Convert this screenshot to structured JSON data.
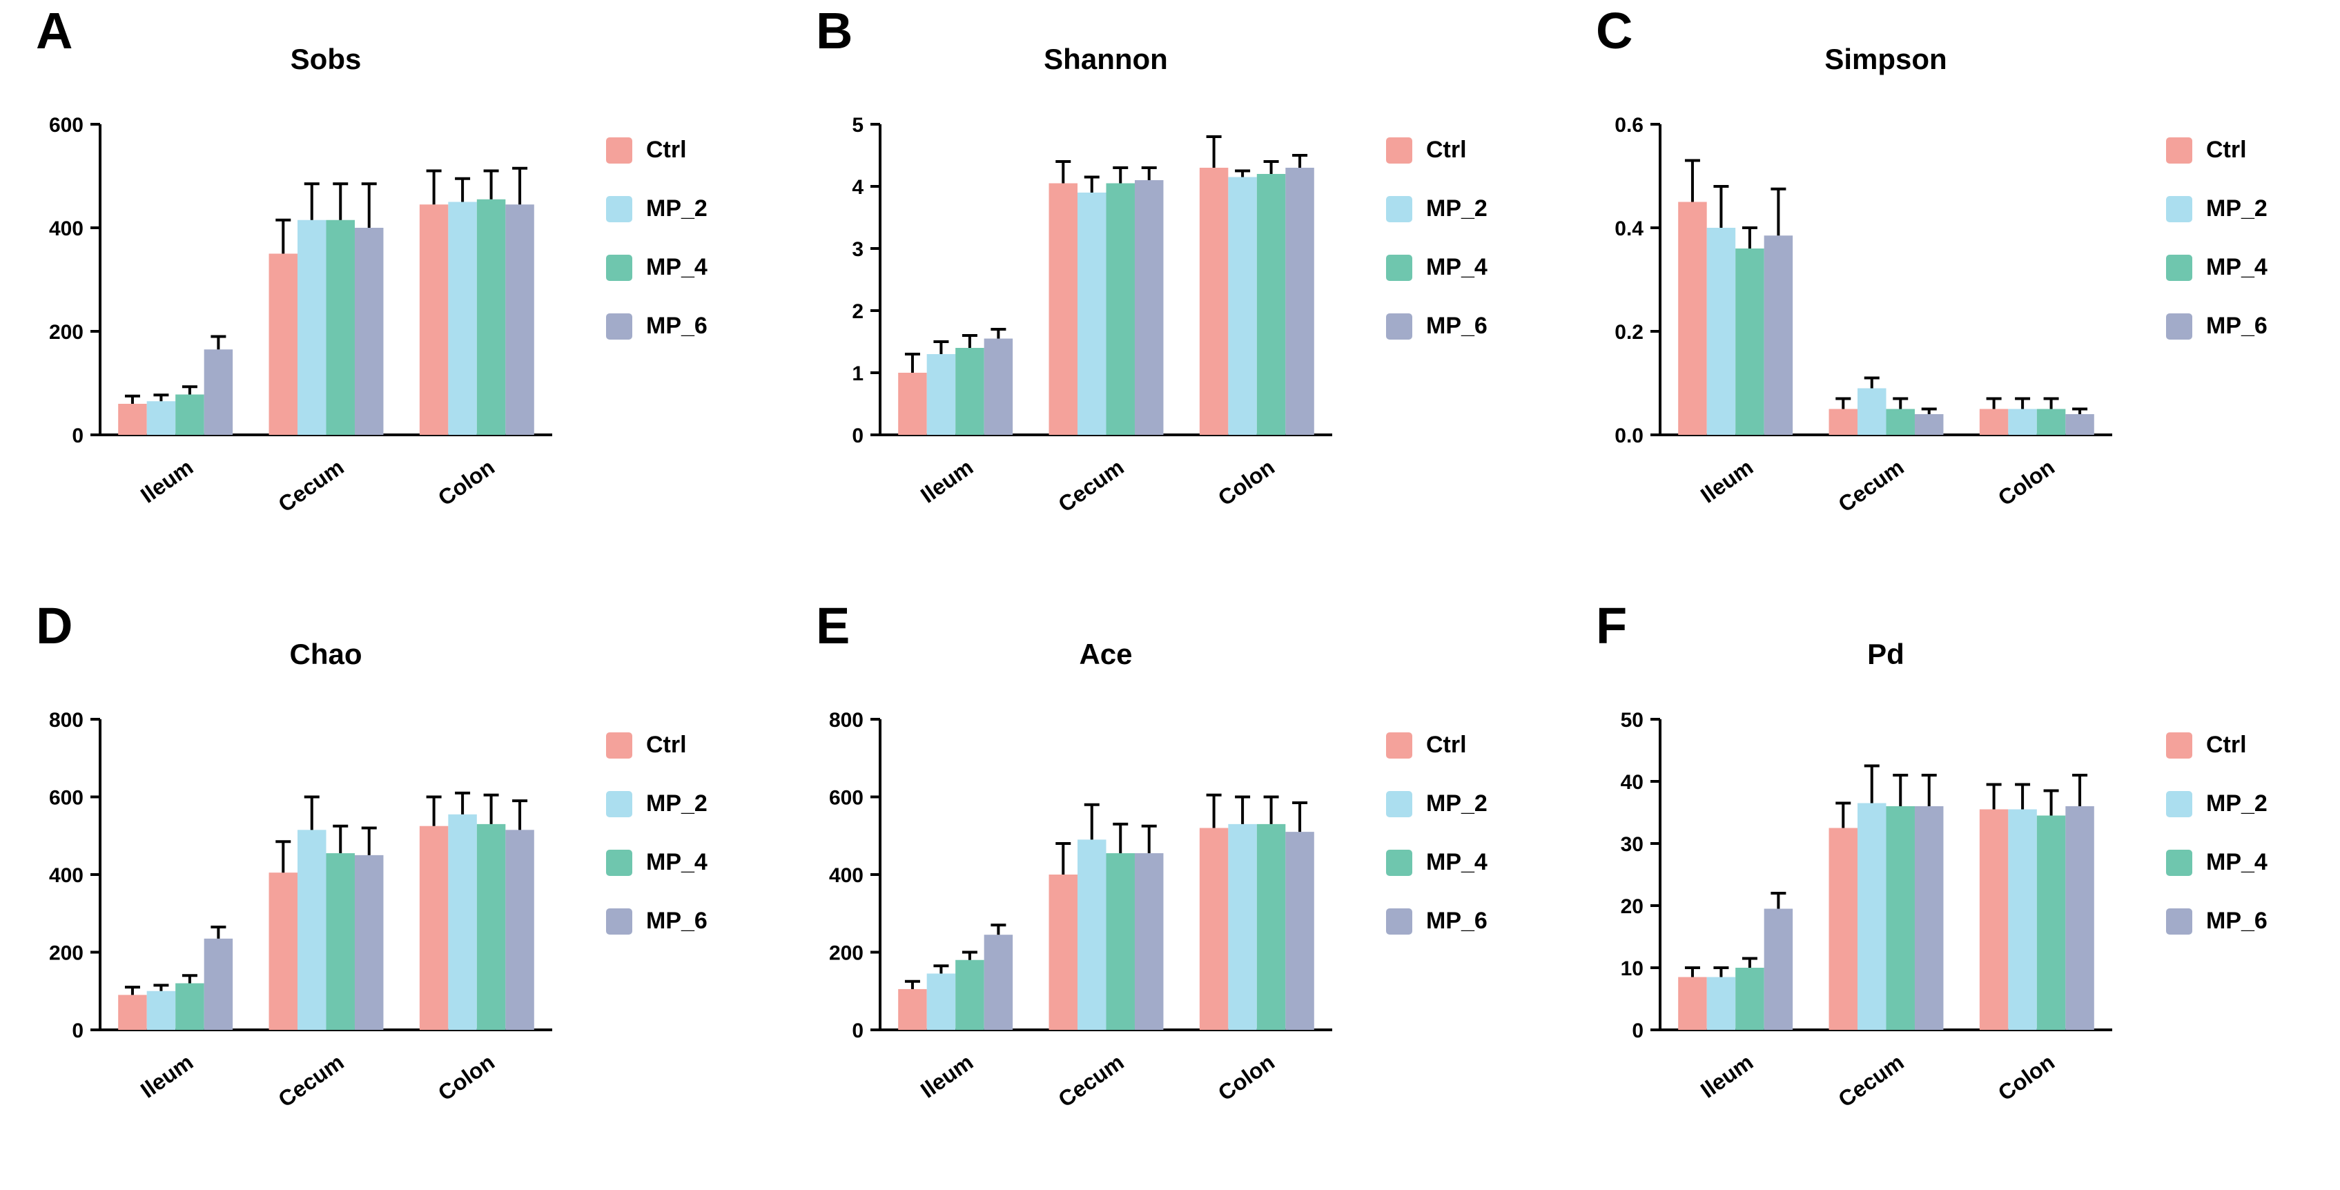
{
  "colors": {
    "series": {
      "Ctrl": "#F4A29B",
      "MP_2": "#ABDEEF",
      "MP_4": "#6FC6AE",
      "MP_6": "#A2ABC9"
    },
    "axis": "#000000",
    "error_bar": "#000000",
    "background": "#ffffff"
  },
  "legend_entries": [
    "Ctrl",
    "MP_2",
    "MP_4",
    "MP_6"
  ],
  "chart_data": [
    {
      "type": "bar",
      "panel": "A",
      "title": "Sobs",
      "xlabel": "",
      "ylabel": "",
      "categories": [
        "Ileum",
        "Cecum",
        "Colon"
      ],
      "ylim": [
        0,
        600
      ],
      "yticks": [
        0,
        200,
        400,
        600
      ],
      "ytick_labels": [
        "0",
        "200",
        "400",
        "600"
      ],
      "grid": false,
      "legend_position": "right",
      "series": [
        {
          "name": "Ctrl",
          "values": [
            60,
            350,
            445
          ],
          "errors": [
            15,
            65,
            65
          ]
        },
        {
          "name": "MP_2",
          "values": [
            65,
            415,
            450
          ],
          "errors": [
            12,
            70,
            45
          ]
        },
        {
          "name": "MP_4",
          "values": [
            78,
            415,
            455
          ],
          "errors": [
            15,
            70,
            55
          ]
        },
        {
          "name": "MP_6",
          "values": [
            165,
            400,
            445
          ],
          "errors": [
            25,
            85,
            70
          ]
        }
      ]
    },
    {
      "type": "bar",
      "panel": "B",
      "title": "Shannon",
      "xlabel": "",
      "ylabel": "",
      "categories": [
        "Ileum",
        "Cecum",
        "Colon"
      ],
      "ylim": [
        0,
        5
      ],
      "yticks": [
        0,
        1,
        2,
        3,
        4,
        5
      ],
      "ytick_labels": [
        "0",
        "1",
        "2",
        "3",
        "4",
        "5"
      ],
      "grid": false,
      "legend_position": "right",
      "series": [
        {
          "name": "Ctrl",
          "values": [
            1.0,
            4.05,
            4.3
          ],
          "errors": [
            0.3,
            0.35,
            0.5
          ]
        },
        {
          "name": "MP_2",
          "values": [
            1.3,
            3.9,
            4.15
          ],
          "errors": [
            0.2,
            0.25,
            0.1
          ]
        },
        {
          "name": "MP_4",
          "values": [
            1.4,
            4.05,
            4.2
          ],
          "errors": [
            0.2,
            0.25,
            0.2
          ]
        },
        {
          "name": "MP_6",
          "values": [
            1.55,
            4.1,
            4.3
          ],
          "errors": [
            0.15,
            0.2,
            0.2
          ]
        }
      ]
    },
    {
      "type": "bar",
      "panel": "C",
      "title": "Simpson",
      "xlabel": "",
      "ylabel": "",
      "categories": [
        "Ileum",
        "Cecum",
        "Colon"
      ],
      "ylim": [
        0,
        0.6
      ],
      "yticks": [
        0,
        0.2,
        0.4,
        0.6
      ],
      "ytick_labels": [
        "0.0",
        "0.2",
        "0.4",
        "0.6"
      ],
      "grid": false,
      "legend_position": "right",
      "series": [
        {
          "name": "Ctrl",
          "values": [
            0.45,
            0.05,
            0.05
          ],
          "errors": [
            0.08,
            0.02,
            0.02
          ]
        },
        {
          "name": "MP_2",
          "values": [
            0.4,
            0.09,
            0.05
          ],
          "errors": [
            0.08,
            0.02,
            0.02
          ]
        },
        {
          "name": "MP_4",
          "values": [
            0.36,
            0.05,
            0.05
          ],
          "errors": [
            0.04,
            0.02,
            0.02
          ]
        },
        {
          "name": "MP_6",
          "values": [
            0.385,
            0.04,
            0.04
          ],
          "errors": [
            0.09,
            0.01,
            0.01
          ]
        }
      ]
    },
    {
      "type": "bar",
      "panel": "D",
      "title": "Chao",
      "xlabel": "",
      "ylabel": "",
      "categories": [
        "Ileum",
        "Cecum",
        "Colon"
      ],
      "ylim": [
        0,
        800
      ],
      "yticks": [
        0,
        200,
        400,
        600,
        800
      ],
      "ytick_labels": [
        "0",
        "200",
        "400",
        "600",
        "800"
      ],
      "grid": false,
      "legend_position": "right",
      "series": [
        {
          "name": "Ctrl",
          "values": [
            90,
            405,
            525
          ],
          "errors": [
            20,
            80,
            75
          ]
        },
        {
          "name": "MP_2",
          "values": [
            100,
            515,
            555
          ],
          "errors": [
            15,
            85,
            55
          ]
        },
        {
          "name": "MP_4",
          "values": [
            120,
            455,
            530
          ],
          "errors": [
            20,
            70,
            75
          ]
        },
        {
          "name": "MP_6",
          "values": [
            235,
            450,
            515
          ],
          "errors": [
            30,
            70,
            75
          ]
        }
      ]
    },
    {
      "type": "bar",
      "panel": "E",
      "title": "Ace",
      "xlabel": "",
      "ylabel": "",
      "categories": [
        "Ileum",
        "Cecum",
        "Colon"
      ],
      "ylim": [
        0,
        800
      ],
      "yticks": [
        0,
        200,
        400,
        600,
        800
      ],
      "ytick_labels": [
        "0",
        "200",
        "400",
        "600",
        "800"
      ],
      "grid": false,
      "legend_position": "right",
      "series": [
        {
          "name": "Ctrl",
          "values": [
            105,
            400,
            520
          ],
          "errors": [
            20,
            80,
            85
          ]
        },
        {
          "name": "MP_2",
          "values": [
            145,
            490,
            530
          ],
          "errors": [
            20,
            90,
            70
          ]
        },
        {
          "name": "MP_4",
          "values": [
            180,
            455,
            530
          ],
          "errors": [
            20,
            75,
            70
          ]
        },
        {
          "name": "MP_6",
          "values": [
            245,
            455,
            510
          ],
          "errors": [
            25,
            70,
            75
          ]
        }
      ]
    },
    {
      "type": "bar",
      "panel": "F",
      "title": "Pd",
      "xlabel": "",
      "ylabel": "",
      "categories": [
        "Ileum",
        "Cecum",
        "Colon"
      ],
      "ylim": [
        0,
        50
      ],
      "yticks": [
        0,
        10,
        20,
        30,
        40,
        50
      ],
      "ytick_labels": [
        "0",
        "10",
        "20",
        "30",
        "40",
        "50"
      ],
      "grid": false,
      "legend_position": "right",
      "series": [
        {
          "name": "Ctrl",
          "values": [
            8.5,
            32.5,
            35.5
          ],
          "errors": [
            1.5,
            4,
            4
          ]
        },
        {
          "name": "MP_2",
          "values": [
            8.5,
            36.5,
            35.5
          ],
          "errors": [
            1.5,
            6,
            4
          ]
        },
        {
          "name": "MP_4",
          "values": [
            10,
            36,
            34.5
          ],
          "errors": [
            1.5,
            5,
            4
          ]
        },
        {
          "name": "MP_6",
          "values": [
            19.5,
            36,
            36
          ],
          "errors": [
            2.5,
            5,
            5
          ]
        }
      ]
    }
  ]
}
